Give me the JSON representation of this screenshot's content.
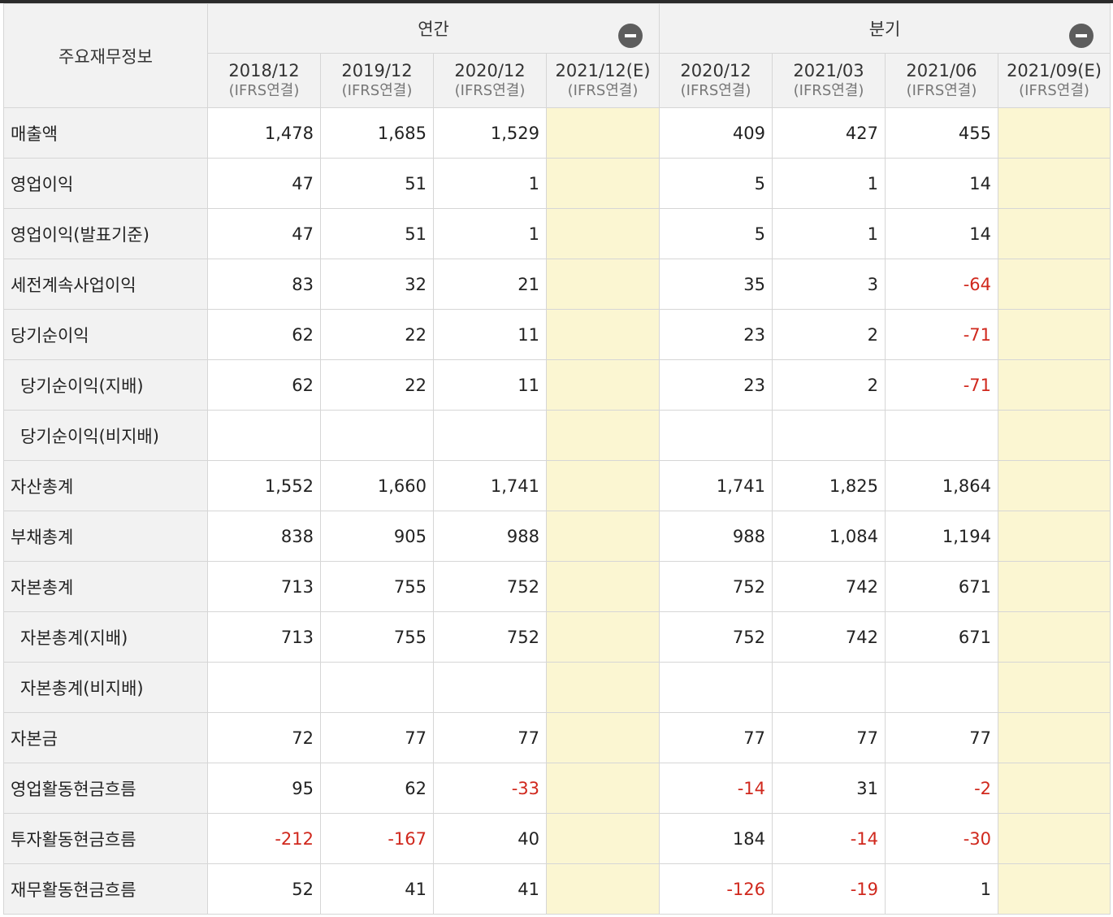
{
  "table": {
    "corner_label": "주요재무정보",
    "groups": [
      {
        "label": "연간",
        "toggle_icon": "minus-circle-icon"
      },
      {
        "label": "분기",
        "toggle_icon": "minus-circle-icon"
      }
    ],
    "columns": [
      {
        "period": "2018/12",
        "basis": "(IFRS연결)"
      },
      {
        "period": "2019/12",
        "basis": "(IFRS연결)"
      },
      {
        "period": "2020/12",
        "basis": "(IFRS연결)"
      },
      {
        "period": "2021/12(E)",
        "basis": "(IFRS연결)"
      },
      {
        "period": "2020/12",
        "basis": "(IFRS연결)"
      },
      {
        "period": "2021/03",
        "basis": "(IFRS연결)"
      },
      {
        "period": "2021/06",
        "basis": "(IFRS연결)"
      },
      {
        "period": "2021/09(E)",
        "basis": "(IFRS연결)"
      }
    ],
    "rows": [
      {
        "label": "매출액",
        "indent": false,
        "values": [
          "1,478",
          "1,685",
          "1,529",
          "",
          "409",
          "427",
          "455",
          ""
        ]
      },
      {
        "label": "영업이익",
        "indent": false,
        "values": [
          "47",
          "51",
          "1",
          "",
          "5",
          "1",
          "14",
          ""
        ]
      },
      {
        "label": "영업이익(발표기준)",
        "indent": false,
        "values": [
          "47",
          "51",
          "1",
          "",
          "5",
          "1",
          "14",
          ""
        ]
      },
      {
        "label": "세전계속사업이익",
        "indent": false,
        "values": [
          "83",
          "32",
          "21",
          "",
          "35",
          "3",
          "-64",
          ""
        ]
      },
      {
        "label": "당기순이익",
        "indent": false,
        "values": [
          "62",
          "22",
          "11",
          "",
          "23",
          "2",
          "-71",
          ""
        ]
      },
      {
        "label": "당기순이익(지배)",
        "indent": true,
        "values": [
          "62",
          "22",
          "11",
          "",
          "23",
          "2",
          "-71",
          ""
        ]
      },
      {
        "label": "당기순이익(비지배)",
        "indent": true,
        "values": [
          "",
          "",
          "",
          "",
          "",
          "",
          "",
          ""
        ]
      },
      {
        "label": "자산총계",
        "indent": false,
        "values": [
          "1,552",
          "1,660",
          "1,741",
          "",
          "1,741",
          "1,825",
          "1,864",
          ""
        ]
      },
      {
        "label": "부채총계",
        "indent": false,
        "values": [
          "838",
          "905",
          "988",
          "",
          "988",
          "1,084",
          "1,194",
          ""
        ]
      },
      {
        "label": "자본총계",
        "indent": false,
        "values": [
          "713",
          "755",
          "752",
          "",
          "752",
          "742",
          "671",
          ""
        ]
      },
      {
        "label": "자본총계(지배)",
        "indent": true,
        "values": [
          "713",
          "755",
          "752",
          "",
          "752",
          "742",
          "671",
          ""
        ]
      },
      {
        "label": "자본총계(비지배)",
        "indent": true,
        "values": [
          "",
          "",
          "",
          "",
          "",
          "",
          "",
          ""
        ]
      },
      {
        "label": "자본금",
        "indent": false,
        "values": [
          "72",
          "77",
          "77",
          "",
          "77",
          "77",
          "77",
          ""
        ]
      },
      {
        "label": "영업활동현금흐름",
        "indent": false,
        "values": [
          "95",
          "62",
          "-33",
          "",
          "-14",
          "31",
          "-2",
          ""
        ]
      },
      {
        "label": "투자활동현금흐름",
        "indent": false,
        "values": [
          "-212",
          "-167",
          "40",
          "",
          "184",
          "-14",
          "-30",
          ""
        ]
      },
      {
        "label": "재무활동현금흐름",
        "indent": false,
        "values": [
          "52",
          "41",
          "41",
          "",
          "-126",
          "-19",
          "1",
          ""
        ]
      }
    ]
  },
  "colors": {
    "header_bg": "#f2f2f2",
    "estimate_bg": "#fbf6d2",
    "negative_text": "#d0281d",
    "top_border": "#2b2b2b"
  }
}
